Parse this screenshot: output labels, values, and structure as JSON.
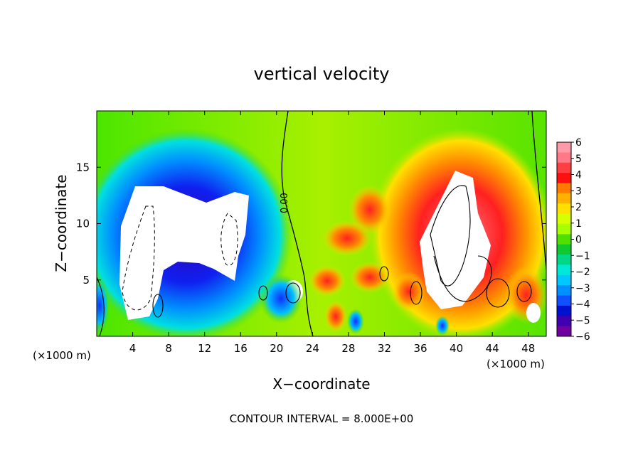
{
  "chart_data": {
    "type": "heatmap",
    "title": "vertical velocity",
    "xlabel": "X−coordinate",
    "ylabel": "Z−coordinate",
    "x_unit_left": "(×1000 m)",
    "x_unit_right": "(×1000 m)",
    "xlim": [
      0,
      50
    ],
    "ylim": [
      0,
      20
    ],
    "xticks": [
      4,
      8,
      12,
      16,
      20,
      24,
      28,
      32,
      36,
      40,
      44,
      48
    ],
    "yticks": [
      5,
      10,
      15
    ],
    "colorbar": {
      "ticks": [
        6,
        5,
        4,
        3,
        2,
        1,
        0,
        -1,
        -2,
        -3,
        -4,
        -5,
        -6
      ],
      "colors": [
        "#ff9aa8",
        "#ff7a86",
        "#ff4040",
        "#ff1010",
        "#ff7a00",
        "#ffb000",
        "#ffe000",
        "#d8ff00",
        "#a8ff00",
        "#50e000",
        "#10c830",
        "#00d888",
        "#00e8d8",
        "#00c8ff",
        "#0090ff",
        "#1050ff",
        "#0010d0",
        "#4000b0",
        "#7000a0"
      ]
    },
    "footer": "CONTOUR INTERVAL = 8.000E+00",
    "contour_label": "0.00",
    "features": [
      {
        "label": "downdraft",
        "cx": 10,
        "cz": 9,
        "sign": -1
      },
      {
        "label": "updraft",
        "cx": 40,
        "cz": 9,
        "sign": 1
      }
    ]
  }
}
